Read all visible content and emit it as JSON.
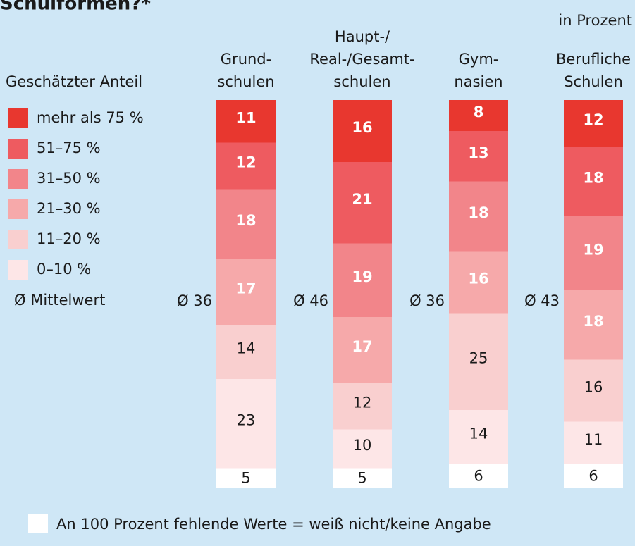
{
  "chart_data": {
    "type": "stacked-bar",
    "title": "Schulformen?*",
    "subtitle": "in Prozent",
    "legend_title": "Geschätzter Anteil",
    "categories": [
      [
        "Grund-",
        "schulen"
      ],
      [
        "Haupt-/",
        "Real-/Gesamt-",
        "schulen"
      ],
      [
        "Gym-",
        "nasien"
      ],
      [
        "Berufliche",
        "Schulen"
      ]
    ],
    "series": [
      {
        "name": "mehr als 75 %",
        "color": "#e8372f",
        "values": [
          11,
          16,
          8,
          12
        ]
      },
      {
        "name": "51–75 %",
        "color": "#ee5b60",
        "values": [
          12,
          21,
          13,
          18
        ]
      },
      {
        "name": "31–50 %",
        "color": "#f2858a",
        "values": [
          18,
          19,
          18,
          19
        ]
      },
      {
        "name": "21–30 %",
        "color": "#f6a9aa",
        "values": [
          17,
          17,
          16,
          18
        ]
      },
      {
        "name": "11–20 %",
        "color": "#f9cfcf",
        "values": [
          14,
          12,
          25,
          16
        ]
      },
      {
        "name": "0–10 %",
        "color": "#fde6e7",
        "values": [
          23,
          10,
          14,
          11
        ]
      },
      {
        "name": "An 100 Prozent fehlende Werte = weiß nicht/keine Angabe",
        "color": "#ffffff",
        "values": [
          5,
          5,
          6,
          6
        ]
      }
    ],
    "mean_legend": "Ø Mittelwert",
    "means": {
      "values": [
        36,
        46,
        36,
        43
      ],
      "value_labels": [
        "Ø 36",
        "Ø 46",
        "Ø 36",
        "Ø 43"
      ]
    },
    "ylim": [
      0,
      100
    ]
  }
}
